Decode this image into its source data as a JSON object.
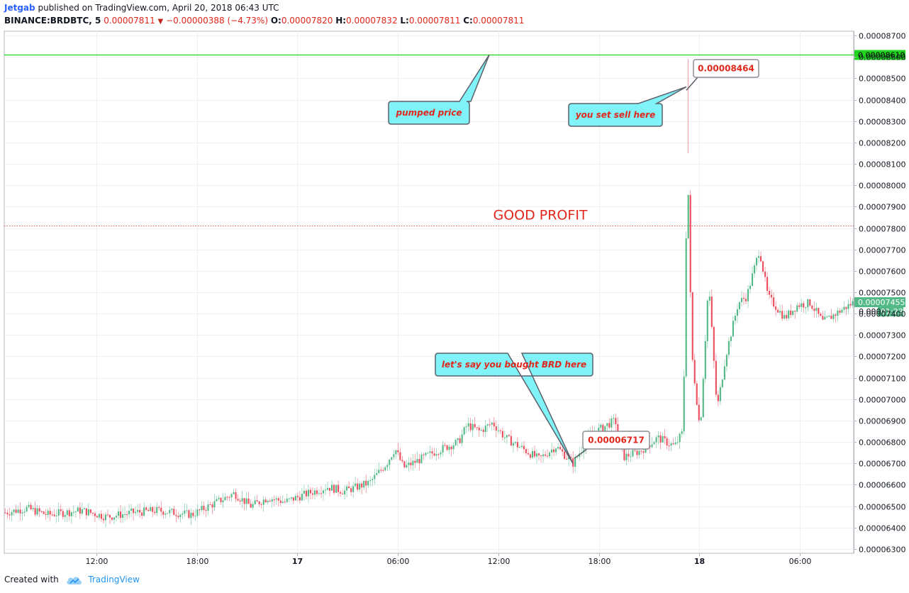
{
  "header": {
    "author": "Jetgab",
    "published_text": "published on TradingView.com, April 20, 2018 06:43 UTC",
    "symbol": "BINANCE:BRDBTC, 5",
    "last_price": "0.00007811",
    "change": "−0.00000388 (−4.73%)",
    "o_label": "O:",
    "o_value": "0.00007820",
    "h_label": "H:",
    "h_value": "0.00007832",
    "l_label": "L:",
    "l_value": "0.00007811",
    "c_label": "C:",
    "c_value": "0.00007811"
  },
  "footer": {
    "created_with": "Created with",
    "brand": "TradingView"
  },
  "colors": {
    "up": "#53b987",
    "down": "#eb4d5c",
    "green_line": "#1fd31f",
    "profit_line": "#e0271c",
    "callout_fill": "#80f3f8",
    "callout_text": "#e0271c"
  },
  "chart_data": {
    "type": "candlestick",
    "y_ticks": [
      "0.00006300",
      "0.00006400",
      "0.00006500",
      "0.00006600",
      "0.00006700",
      "0.00006800",
      "0.00006900",
      "0.00007000",
      "0.00007100",
      "0.00007200",
      "0.00007300",
      "0.00007400",
      "0.00007500",
      "0.00007600",
      "0.00007700",
      "0.00007800",
      "0.00007900",
      "0.00008000",
      "0.00008100",
      "0.00008200",
      "0.00008300",
      "0.00008400",
      "0.00008500",
      "0.00008600",
      "0.00008700"
    ],
    "y_range": [
      6.28e-05,
      8.72e-05
    ],
    "x_ticks": [
      {
        "label": "12:00",
        "bold": false
      },
      {
        "label": "18:00",
        "bold": false
      },
      {
        "label": "17",
        "bold": true
      },
      {
        "label": "06:00",
        "bold": false
      },
      {
        "label": "12:00",
        "bold": false
      },
      {
        "label": "18:00",
        "bold": false
      },
      {
        "label": "18",
        "bold": true
      },
      {
        "label": "06:00",
        "bold": false
      }
    ],
    "horizontal_levels": [
      {
        "value": 8.61e-05,
        "label": "0.00008610",
        "style": "solid-green"
      },
      {
        "value": 7.81e-05,
        "label": "",
        "style": "dotted-red"
      }
    ],
    "price_badges": [
      {
        "value": 7.455e-05,
        "label": "0.00007455"
      },
      {
        "value": 7.41e-05,
        "label": "0.0000",
        "countdown": "01:23"
      }
    ],
    "anchors": [
      {
        "t": 0.0,
        "price": 6.47e-05
      },
      {
        "t": 0.025,
        "price": 6.49e-05
      },
      {
        "t": 0.05,
        "price": 6.46e-05
      },
      {
        "t": 0.09,
        "price": 6.48e-05
      },
      {
        "t": 0.12,
        "price": 6.45e-05
      },
      {
        "t": 0.15,
        "price": 6.47e-05
      },
      {
        "t": 0.18,
        "price": 6.48e-05
      },
      {
        "t": 0.22,
        "price": 6.46e-05
      },
      {
        "t": 0.25,
        "price": 6.52e-05
      },
      {
        "t": 0.27,
        "price": 6.56e-05
      },
      {
        "t": 0.29,
        "price": 6.5e-05
      },
      {
        "t": 0.31,
        "price": 6.54e-05
      },
      {
        "t": 0.33,
        "price": 6.52e-05
      },
      {
        "t": 0.35,
        "price": 6.55e-05
      },
      {
        "t": 0.38,
        "price": 6.59e-05
      },
      {
        "t": 0.4,
        "price": 6.57e-05
      },
      {
        "t": 0.43,
        "price": 6.61e-05
      },
      {
        "t": 0.45,
        "price": 6.7e-05
      },
      {
        "t": 0.46,
        "price": 6.77e-05
      },
      {
        "t": 0.47,
        "price": 6.68e-05
      },
      {
        "t": 0.49,
        "price": 6.72e-05
      },
      {
        "t": 0.51,
        "price": 6.76e-05
      },
      {
        "t": 0.535,
        "price": 6.8e-05
      },
      {
        "t": 0.545,
        "price": 6.88e-05
      },
      {
        "t": 0.56,
        "price": 6.85e-05
      },
      {
        "t": 0.575,
        "price": 6.89e-05
      },
      {
        "t": 0.59,
        "price": 6.82e-05
      },
      {
        "t": 0.61,
        "price": 6.77e-05
      },
      {
        "t": 0.63,
        "price": 6.72e-05
      },
      {
        "t": 0.65,
        "price": 6.78e-05
      },
      {
        "t": 0.67,
        "price": 6.7e-05
      },
      {
        "t": 0.69,
        "price": 6.83e-05
      },
      {
        "t": 0.71,
        "price": 6.88e-05
      },
      {
        "t": 0.72,
        "price": 6.9e-05
      },
      {
        "t": 0.73,
        "price": 6.73e-05
      },
      {
        "t": 0.75,
        "price": 6.76e-05
      },
      {
        "t": 0.77,
        "price": 6.82e-05
      },
      {
        "t": 0.79,
        "price": 6.78e-05
      },
      {
        "t": 0.8,
        "price": 6.85e-05
      },
      {
        "t": 0.805,
        "price": 8.15e-05
      },
      {
        "t": 0.81,
        "price": 7.22e-05
      },
      {
        "t": 0.82,
        "price": 6.85e-05
      },
      {
        "t": 0.83,
        "price": 7.55e-05
      },
      {
        "t": 0.84,
        "price": 6.95e-05
      },
      {
        "t": 0.85,
        "price": 7.2e-05
      },
      {
        "t": 0.865,
        "price": 7.45e-05
      },
      {
        "t": 0.875,
        "price": 7.48e-05
      },
      {
        "t": 0.89,
        "price": 7.7e-05
      },
      {
        "t": 0.9,
        "price": 7.48e-05
      },
      {
        "t": 0.92,
        "price": 7.38e-05
      },
      {
        "t": 0.935,
        "price": 7.44e-05
      },
      {
        "t": 0.95,
        "price": 7.45e-05
      },
      {
        "t": 0.965,
        "price": 7.36e-05
      },
      {
        "t": 0.98,
        "price": 7.4e-05
      },
      {
        "t": 1.0,
        "price": 7.45e-05
      }
    ],
    "annotations": [
      {
        "text": "pumped price",
        "type": "callout",
        "target_price": 8.61e-05
      },
      {
        "text": "you set sell here",
        "type": "callout",
        "target_price": 8.46e-05
      },
      {
        "text": "0.00008464",
        "type": "label",
        "target_price": 8.464e-05
      },
      {
        "text": "let's say you bought BRD here",
        "type": "callout",
        "target_price": 6.7e-05
      },
      {
        "text": "0.00006717",
        "type": "label",
        "target_price": 6.717e-05
      },
      {
        "text": "GOOD PROFIT",
        "type": "text",
        "target_price": 7.81e-05
      }
    ]
  }
}
